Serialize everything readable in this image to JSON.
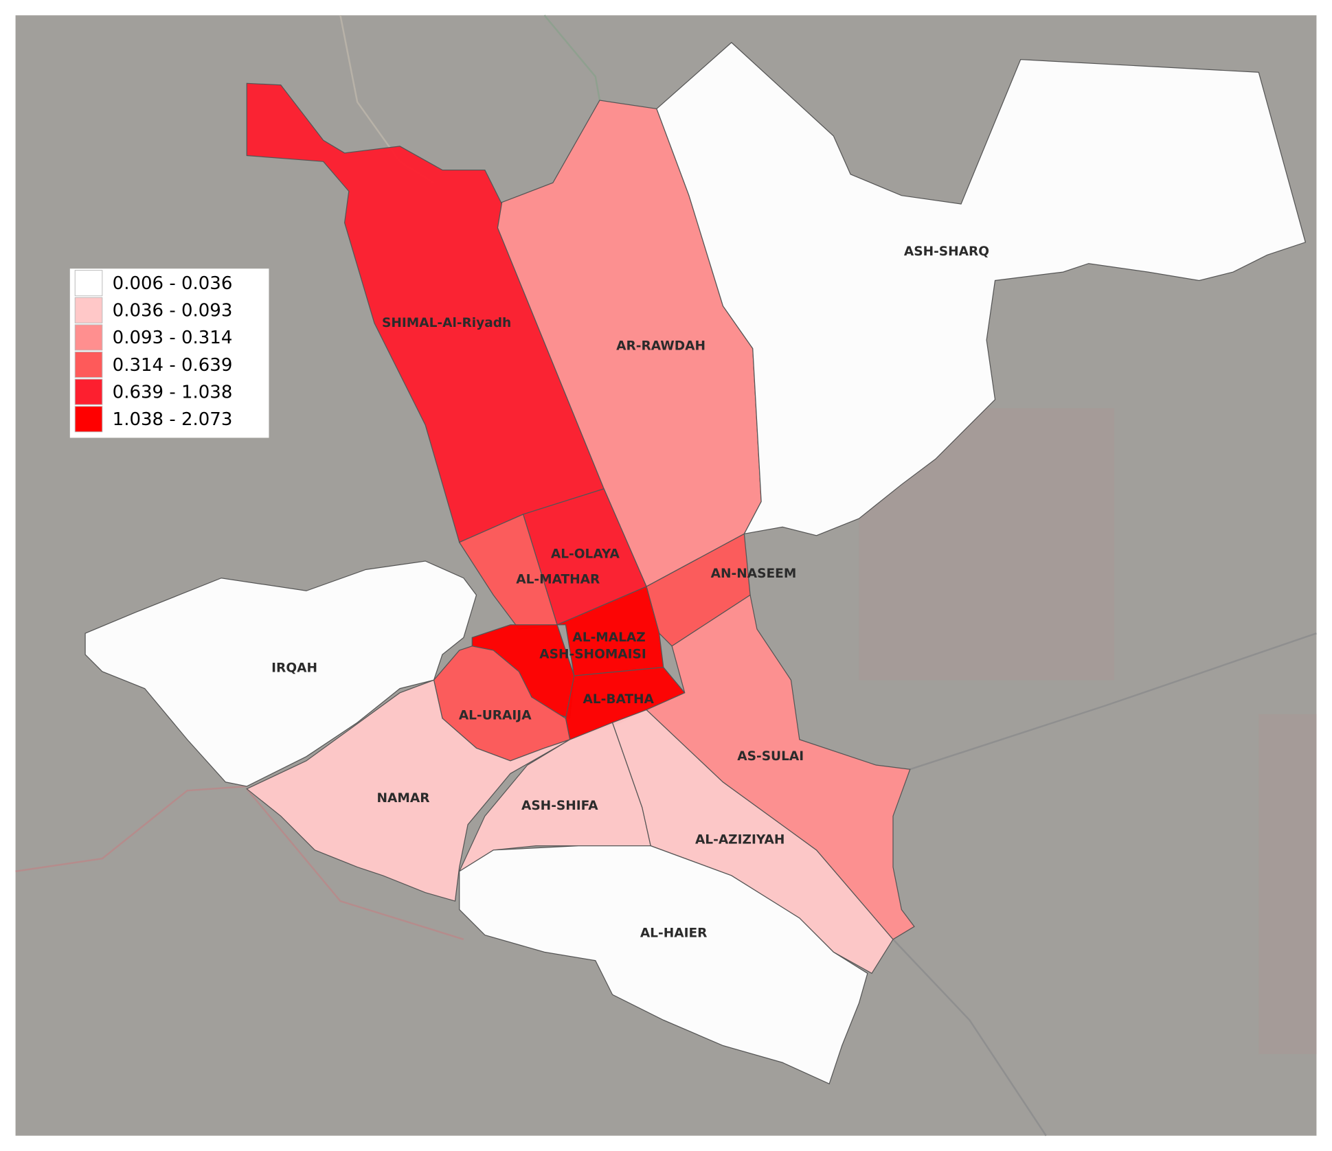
{
  "map": {
    "legend": {
      "items": [
        {
          "label": "0.006 - 0.036",
          "color": "#ffffff"
        },
        {
          "label": "0.036 - 0.093",
          "color": "#ffc8c8"
        },
        {
          "label": "0.093 - 0.314",
          "color": "#ff8f8f"
        },
        {
          "label": "0.314 - 0.639",
          "color": "#fe5a5a"
        },
        {
          "label": "0.639 - 1.038",
          "color": "#fd1f2f"
        },
        {
          "label": "1.038 - 2.073",
          "color": "#ff0000"
        }
      ]
    },
    "districts": [
      {
        "name": "SHIMAL-Al-Riyadh",
        "color": "#fd1f2f"
      },
      {
        "name": "AR-RAWDAH",
        "color": "#ff8f8f"
      },
      {
        "name": "ASH-SHARQ",
        "color": "#ffffff"
      },
      {
        "name": "AL-OLAYA",
        "color": "#fd1f2f"
      },
      {
        "name": "AL-MATHAR",
        "color": "#fe5a5a"
      },
      {
        "name": "AN-NASEEM",
        "color": "#fe5a5a"
      },
      {
        "name": "AL-MALAZ",
        "color": "#ff0000"
      },
      {
        "name": "ASH-SHOMAISI",
        "color": "#ff0000"
      },
      {
        "name": "AL-BATHA",
        "color": "#ff0000"
      },
      {
        "name": "IRQAH",
        "color": "#ffffff"
      },
      {
        "name": "AL-URAIJA",
        "color": "#fe5a5a"
      },
      {
        "name": "NAMAR",
        "color": "#ffc8c8"
      },
      {
        "name": "ASH-SHIFA",
        "color": "#ffc8c8"
      },
      {
        "name": "AL-AZIZIYAH",
        "color": "#ffc8c8"
      },
      {
        "name": "AS-SULAI",
        "color": "#ff8f8f"
      },
      {
        "name": "AL-HAIER",
        "color": "#ffffff"
      }
    ]
  }
}
